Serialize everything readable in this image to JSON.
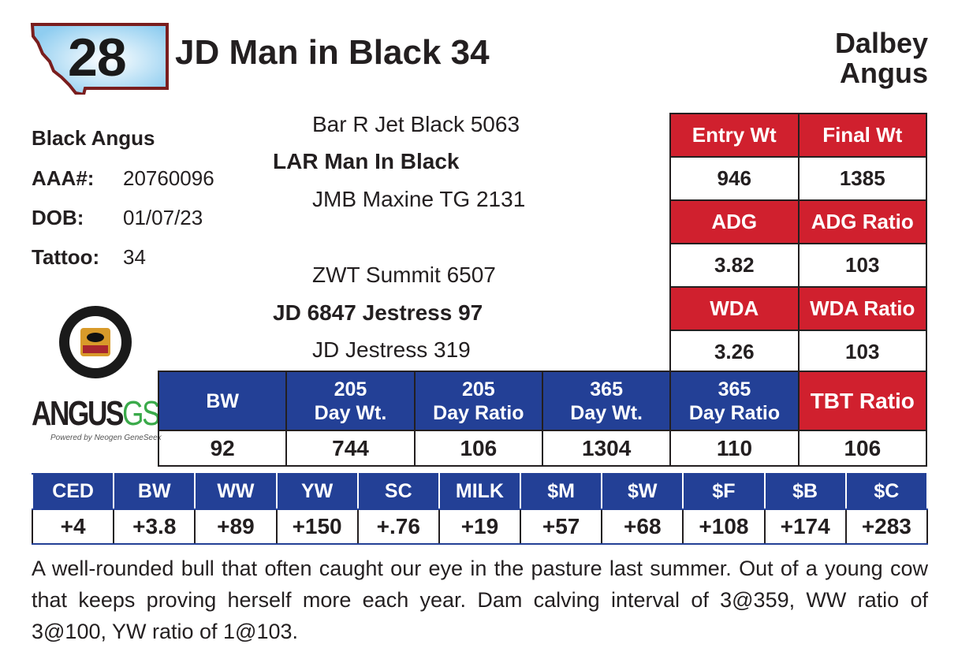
{
  "lot_number": "28",
  "title": "JD Man in Black 34",
  "breeder": [
    "Dalbey",
    "Angus"
  ],
  "info": {
    "breed": "Black Angus",
    "aaa_label": "AAA#:",
    "aaa": "20760096",
    "dob_label": "DOB:",
    "dob": "01/07/23",
    "tattoo_label": "Tattoo:",
    "tattoo": "34"
  },
  "pedigree": {
    "sire_sire": "Bar R Jet Black 5063",
    "sire": "LAR Man In Black",
    "sire_dam": "JMB Maxine TG 2131",
    "dam_sire": "ZWT Summit 6507",
    "dam": "JD 6847 Jestress 97",
    "dam_dam": "JD Jestress 319"
  },
  "performance": [
    {
      "h1": "Entry Wt",
      "v1": "946",
      "h2": "Final Wt",
      "v2": "1385"
    },
    {
      "h1": "ADG",
      "v1": "3.82",
      "h2": "ADG Ratio",
      "v2": "103"
    },
    {
      "h1": "WDA",
      "v1": "3.26",
      "h2": "WDA Ratio",
      "v2": "103"
    }
  ],
  "weights": {
    "headers": [
      [
        "BW",
        ""
      ],
      [
        "205",
        "Day Wt."
      ],
      [
        "205",
        "Day Ratio"
      ],
      [
        "365",
        "Day Wt."
      ],
      [
        "365",
        "Day Ratio"
      ],
      [
        "TBT Ratio",
        ""
      ]
    ],
    "values": [
      "92",
      "744",
      "106",
      "1304",
      "110",
      "106"
    ]
  },
  "epd": {
    "headers": [
      "CED",
      "BW",
      "WW",
      "YW",
      "SC",
      "MILK",
      "$M",
      "$W",
      "$F",
      "$B",
      "$C"
    ],
    "values": [
      "+4",
      "+3.8",
      "+89",
      "+150",
      "+.76",
      "+19",
      "+57",
      "+68",
      "+108",
      "+174",
      "+283"
    ]
  },
  "logos": {
    "cab": "Targeting the Brand · Certified Angus Beef",
    "angus_gs": "ANGUS",
    "angus_gs2": "GS",
    "angus_gs_sub": "Powered by Neogen GeneSeek"
  },
  "description": "A well-rounded bull that often caught our eye in the pasture last summer. Out of a young cow that keeps proving herself more each year. Dam calving interval of 3@359, WW ratio of 3@100, YW ratio of 1@103."
}
